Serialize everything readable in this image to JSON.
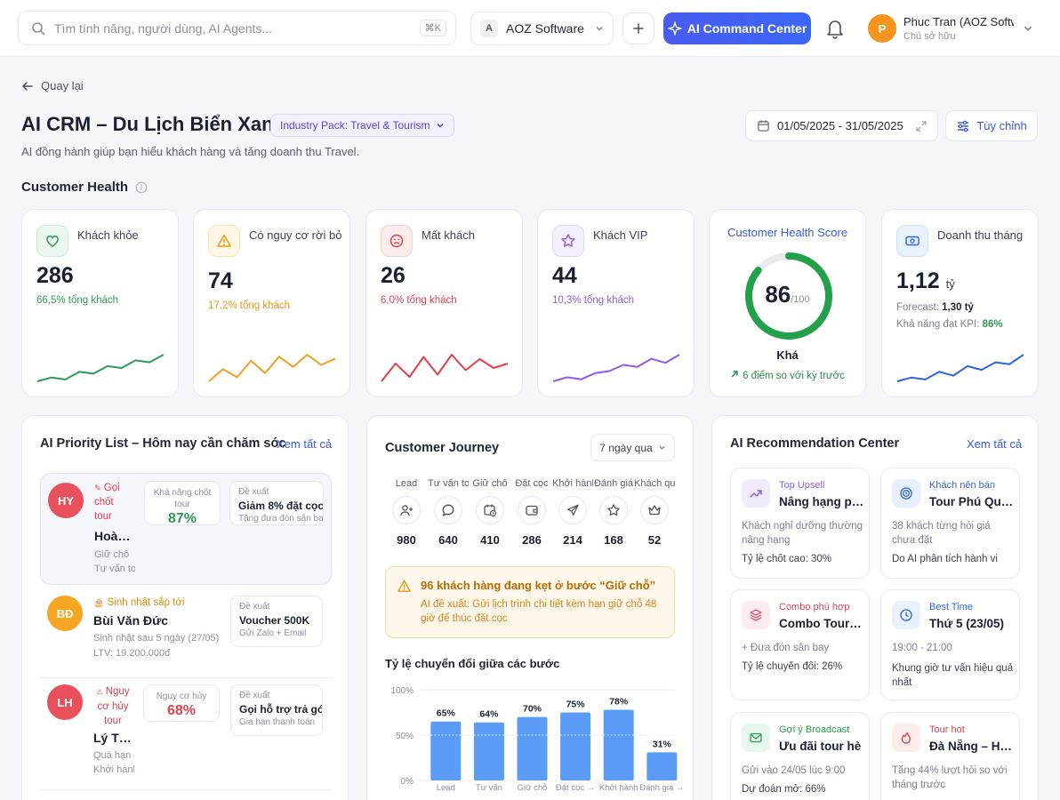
{
  "topbar": {
    "search_placeholder": "Tìm tính năng, người dùng, AI Agents...",
    "search_shortcut": "⌘K",
    "workspace_badge": "A",
    "workspace_name": "AOZ Software",
    "ai_command_label": "AI Command Center",
    "user_initial": "P",
    "user_name": "Phuc Tran (AOZ Software)",
    "user_role": "Chủ sở hữu"
  },
  "header": {
    "back_label": "Quay lại",
    "title": "AI CRM – Du Lịch Biển Xanh",
    "industry_pack": "Industry Pack: Travel & Tourism",
    "subtitle": "AI đồng hành giúp bạn hiểu khách hàng và tăng doanh thu Travel.",
    "date_range": "01/05/2025 - 31/05/2025",
    "customize_label": "Tùy chỉnh"
  },
  "customer_health": {
    "section_title": "Customer Health",
    "cards": [
      {
        "label": "Khách khỏe",
        "value": "286",
        "sub": "66,5% tổng khách",
        "color": "#2e9a52",
        "spark": [
          3,
          5,
          4,
          8,
          7,
          11,
          10,
          14,
          13,
          17
        ]
      },
      {
        "label": "Có nguy cơ rời bỏ",
        "value": "74",
        "sub": "17,2% tổng khách",
        "color": "#f0a020",
        "spark": [
          4,
          10,
          6,
          14,
          8,
          16,
          11,
          17,
          12,
          15
        ]
      },
      {
        "label": "Mất khách",
        "value": "26",
        "sub": "6,0% tổng khách",
        "color": "#e0404a",
        "spark": [
          6,
          14,
          8,
          17,
          9,
          18,
          11,
          16,
          12,
          14
        ]
      },
      {
        "label": "Khách VIP",
        "value": "44",
        "sub": "10,3% tổng khách",
        "color": "#8b5ce6",
        "spark": [
          3,
          5,
          4,
          7,
          8,
          11,
          10,
          14,
          12,
          16
        ]
      }
    ],
    "score": {
      "title": "Customer Health Score",
      "value": 86,
      "max": "/100",
      "level": "Khá",
      "delta": "6 điểm so với kỳ trước"
    },
    "revenue": {
      "label": "Doanh thu tháng",
      "value": "1,12",
      "unit": "tỷ",
      "forecast_label": "Forecast:",
      "forecast_value": "1,30 tỷ",
      "kpi_label": "Khả năng đạt KPI:",
      "kpi_value": "86%",
      "color": "#2d63e0",
      "spark": [
        3,
        5,
        4,
        8,
        6,
        11,
        9,
        13,
        12,
        17
      ]
    }
  },
  "priority": {
    "title": "AI Priority List – Hôm nay cần chăm sóc",
    "view_all": "Xem tất cả",
    "items": [
      {
        "initials": "HY",
        "avatar_color": "#e8505b",
        "tag_icon": "✎",
        "tag": "Gọi chốt tour",
        "tag_color": "#e0404a",
        "name": "Hoàng Yến",
        "meta1": "Giữ chỗ",
        "meta2": "Tư vấn tour",
        "box_label": "Khả năng chốt tour",
        "box_value": "87%",
        "box_color": "#2e9a52",
        "proposal_label": "Đề xuất",
        "proposal": "Giảm 8% đặt cọc",
        "proposal_sub": "Tặng đưa đón sân bay"
      },
      {
        "initials": "BĐ",
        "avatar_color": "#f5a623",
        "tag_icon": "🎂",
        "tag": "Sinh nhật sắp tới",
        "tag_color": "#e08a00",
        "name": "Bùi Văn Đức",
        "meta1": "Sinh nhật sau 5 ngày (27/05)",
        "meta2": "LTV: 19.200.000đ",
        "proposal_label": "Đề xuất",
        "proposal": "Voucher 500K",
        "proposal_sub": "Gửi Zalo + Email"
      },
      {
        "initials": "LH",
        "avatar_color": "#e8505b",
        "tag_icon": "⚠",
        "tag": "Nguy cơ hủy tour",
        "tag_color": "#e0404a",
        "name": "Lý Thu Hà",
        "meta1": "Quá hạn đặt cọc",
        "meta2": "Khởi hành sớm",
        "box_label": "Nguy cơ hủy",
        "box_value": "68%",
        "box_color": "#e0404a",
        "proposal_label": "Đề xuất",
        "proposal": "Gọi hỗ trợ trả góp",
        "proposal_sub": "Gia hạn thanh toán"
      }
    ]
  },
  "journey": {
    "title": "Customer Journey",
    "period": "7 ngày qua",
    "stages": [
      {
        "label": "Lead",
        "value": "980",
        "icon": "user-plus-icon"
      },
      {
        "label": "Tư vấn tour",
        "value": "640",
        "icon": "chat-icon"
      },
      {
        "label": "Giữ chỗ",
        "value": "410",
        "icon": "calendar-clock-icon"
      },
      {
        "label": "Đặt cọc",
        "value": "286",
        "icon": "wallet-icon"
      },
      {
        "label": "Khởi hành",
        "value": "214",
        "icon": "plane-icon"
      },
      {
        "label": "Đánh giá",
        "value": "168",
        "icon": "star-icon"
      },
      {
        "label": "Khách quen",
        "value": "52",
        "icon": "crown-icon"
      }
    ],
    "alert_title": "96 khách hàng đang kẹt ở bước “Giữ chỗ”",
    "alert_body": "AI đề xuất: Gửi lịch trình chi tiết kèm hạn giữ chỗ 48 giờ để thúc đặt cọc"
  },
  "chart_data": {
    "type": "bar",
    "title": "Tỷ lệ chuyển đổi giữa các bước",
    "categories": [
      "Lead → Tư vấn",
      "Tư vấn → Giữ chỗ",
      "Giữ chỗ → Đặt cọc",
      "Đặt cọc → Khởi hành",
      "Khởi hành → Đánh giá",
      "Đánh giá → Khách quen"
    ],
    "category_labels_visible": [
      "Lead",
      "Tư vấn",
      "Giữ chỗ",
      "Đặt cọc →",
      "Khởi hành",
      "Đánh giá →"
    ],
    "values": [
      65,
      64,
      70,
      75,
      78,
      31
    ],
    "value_labels": [
      "65%",
      "64%",
      "70%",
      "75%",
      "78%",
      "31%"
    ],
    "yticks": [
      "100%",
      "50%",
      "0%"
    ],
    "ylim": [
      0,
      100
    ],
    "color": "#5b9cf6"
  },
  "recommendations": {
    "title": "AI Recommendation Center",
    "view_all": "Xem tất cả",
    "cards": [
      {
        "tag": "Top Upsell",
        "tag_color": "#8b5ce6",
        "icon_bg": "#f1ecfd",
        "title": "Nâng hạng phòng",
        "desc": "Khách nghỉ dưỡng thường nâng hạng",
        "foot": "Tỷ lệ chốt cao: 30%"
      },
      {
        "tag": "Khách nên bán",
        "tag_color": "#2d63e0",
        "icon_bg": "#e8f0fd",
        "title": "Tour Phú Quốc",
        "desc": "38 khách từng hỏi giá chưa đặt",
        "foot": "Do AI phân tích hành vi"
      },
      {
        "tag": "Combo phù hợp",
        "tag_color": "#e0405a",
        "icon_bg": "#fdecef",
        "title": "Combo Tour + Hotel",
        "desc": "+ Đưa đón sân bay",
        "foot": "Tỷ lệ chuyển đổi: 26%"
      },
      {
        "tag": "Best Time",
        "tag_color": "#2d63e0",
        "icon_bg": "#e8f2fd",
        "title": "Thứ 5 (23/05)",
        "desc": "19:00 - 21:00",
        "foot": "Khung giờ tư vấn hiệu quả nhất"
      },
      {
        "tag": "Gợi ý Broadcast",
        "tag_color": "#2e9a52",
        "icon_bg": "#e8f7ee",
        "title": "Ưu đãi tour hè",
        "desc": "Gửi vào 24/05 lúc 9:00",
        "foot": "Dự đoán mở: 66%"
      },
      {
        "tag": "Tour hot",
        "tag_color": "#e0404a",
        "icon_bg": "#fdecec",
        "title": "Đà Nẵng – Hội An",
        "desc": "Tăng 44% lượt hỏi so với tháng trước",
        "foot": ""
      }
    ]
  }
}
